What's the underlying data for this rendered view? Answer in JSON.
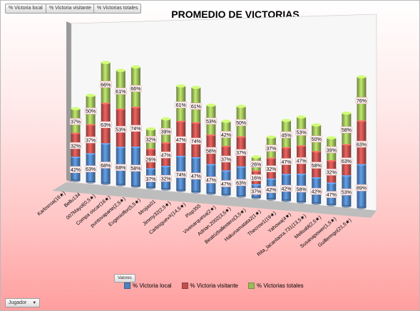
{
  "field_buttons": [
    "% Victoria local",
    "% Victoria visitante",
    "% Victorias totales"
  ],
  "values_button": "Valores",
  "filter_button": "Jugador",
  "colors": {
    "local": "#4f81bd",
    "visitante": "#c0504d",
    "totales": "#9bbb59"
  },
  "chart_data": {
    "type": "bar",
    "stacked": true,
    "three_d": true,
    "title": "PROMEDIO DE VICTORIAS",
    "categories": [
      "Karlosroa(16★)",
      "Bellu134",
      "007Mayol(0,5★)",
      "Compa oscar(16★)",
      "puntovaparte(2,5★)",
      "Eugenioflor(5,5★)",
      "Mrojas01",
      "Jimmy32(2,5★)",
      "CarlosguevX(14,5★)",
      "Pisp355",
      "Vivimarquesa(2★)",
      "Adrian.2002(3,5★)",
      "Beatrizballestero(3,5★)",
      "Hakunamatata2(1★)",
      "Thecrow1(19★)",
      "Yahowa(4★)",
      "Rita_lacantaora.731(13,5★)",
      "Melisabl(2,5★)",
      "Susanapower(1,5★)",
      "Guillermgo(21,5★)"
    ],
    "series": [
      {
        "name": "% Victoria local",
        "labels": [
          "42%",
          "63%",
          "68%",
          "68%",
          "58%",
          "37%",
          "32%",
          "74%",
          "47%",
          "47%",
          "47%",
          "63%",
          "37%",
          "42%",
          "42%",
          "58%",
          "42%",
          "47%",
          "53%",
          "89%"
        ]
      },
      {
        "name": "% Victoria visitante",
        "labels": [
          "32%",
          "37%",
          "63%",
          "53%",
          "74%",
          "26%",
          "47%",
          "47%",
          "74%",
          "58%",
          "37%",
          "37%",
          "16%",
          "32%",
          "47%",
          "47%",
          "58%",
          "32%",
          "63%",
          "63%"
        ]
      },
      {
        "name": "% Victorias totales",
        "labels": [
          "37%",
          "50%",
          "66%",
          "61%",
          "66%",
          "32%",
          "39%",
          "61%",
          "61%",
          "53%",
          "42%",
          "50%",
          "26%",
          "37%",
          "45%",
          "53%",
          "50%",
          "39%",
          "58%",
          "76%"
        ]
      }
    ],
    "tops": [
      44,
      53,
      74,
      70,
      73,
      36,
      43,
      64,
      64,
      54,
      45,
      55,
      25,
      38,
      49,
      52,
      48,
      41,
      57,
      80
    ]
  }
}
